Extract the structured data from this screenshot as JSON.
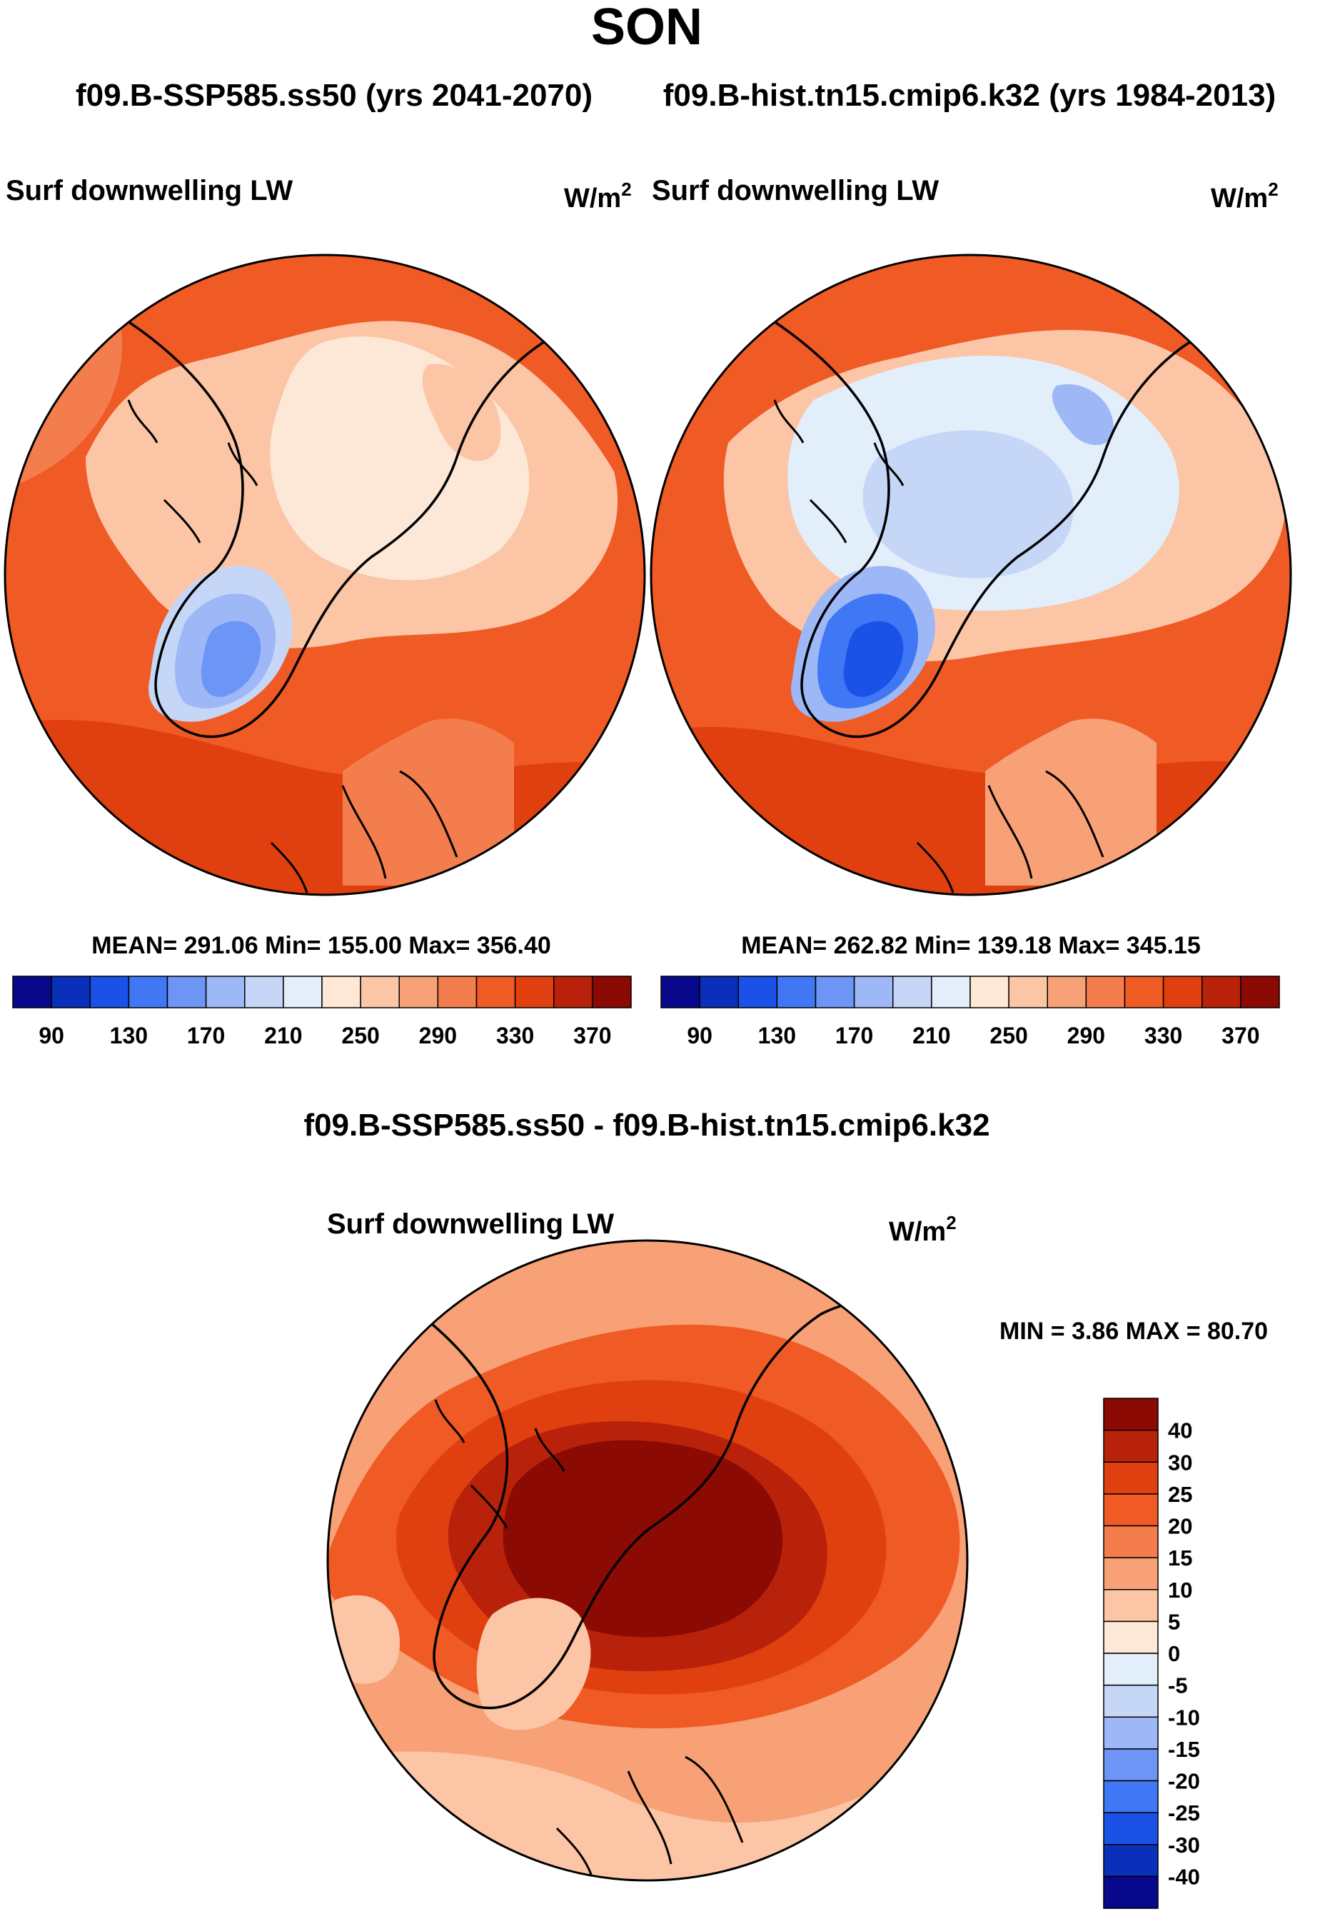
{
  "title": "SON",
  "subtitle_left": "f09.B-SSP585.ss50 (yrs 2041-2070)",
  "subtitle_right": "f09.B-hist.tn15.cmip6.k32 (yrs 1984-2013)",
  "diff_title": "f09.B-SSP585.ss50 - f09.B-hist.tn15.cmip6.k32",
  "colors": {
    "seq_scale": [
      "#08088c",
      "#0a2fb8",
      "#1a52e8",
      "#3f77f5",
      "#6c95f5",
      "#9db7f7",
      "#c6d6f7",
      "#e3eefb",
      "#fde7d6",
      "#fbc5a6",
      "#f8a176",
      "#f47d4e",
      "#ef5a25",
      "#e0400f",
      "#b8220a",
      "#8c0a04"
    ],
    "diff_scale": [
      "#08088c",
      "#0a2fb8",
      "#1a52e8",
      "#3f77f5",
      "#6c95f5",
      "#9db7f7",
      "#c6d6f7",
      "#e3eefb",
      "#fde7d6",
      "#fbc5a6",
      "#f8a176",
      "#f47d4e",
      "#ef5a25",
      "#e0400f",
      "#b8220a",
      "#8c0a04"
    ]
  },
  "chart_data": [
    {
      "type": "heatmap",
      "projection": "north-polar-stereographic",
      "title": "Surf downwelling LW",
      "units": "W/m",
      "units_exp": "2",
      "stats": {
        "mean": 291.06,
        "min": 155.0,
        "max": 356.4
      },
      "stats_label": "MEAN= 291.06  Min= 155.00  Max= 356.40",
      "colorbar": {
        "orientation": "horizontal",
        "levels": [
          90,
          130,
          170,
          210,
          250,
          290,
          330,
          370
        ]
      }
    },
    {
      "type": "heatmap",
      "projection": "north-polar-stereographic",
      "title": "Surf downwelling LW",
      "units": "W/m",
      "units_exp": "2",
      "stats": {
        "mean": 262.82,
        "min": 139.18,
        "max": 345.15
      },
      "stats_label": "MEAN= 262.82  Min= 139.18  Max= 345.15",
      "colorbar": {
        "orientation": "horizontal",
        "levels": [
          90,
          130,
          170,
          210,
          250,
          290,
          330,
          370
        ]
      }
    },
    {
      "type": "heatmap",
      "projection": "north-polar-stereographic",
      "title": "Surf downwelling LW",
      "units": "W/m",
      "units_exp": "2",
      "stats": {
        "min": 3.86,
        "max": 80.7
      },
      "stats_label": "MIN =   3.86 MAX =  80.70",
      "colorbar": {
        "orientation": "vertical",
        "levels": [
          40,
          30,
          25,
          20,
          15,
          10,
          5,
          0,
          -5,
          -10,
          -15,
          -20,
          -25,
          -30,
          -40
        ]
      }
    }
  ]
}
